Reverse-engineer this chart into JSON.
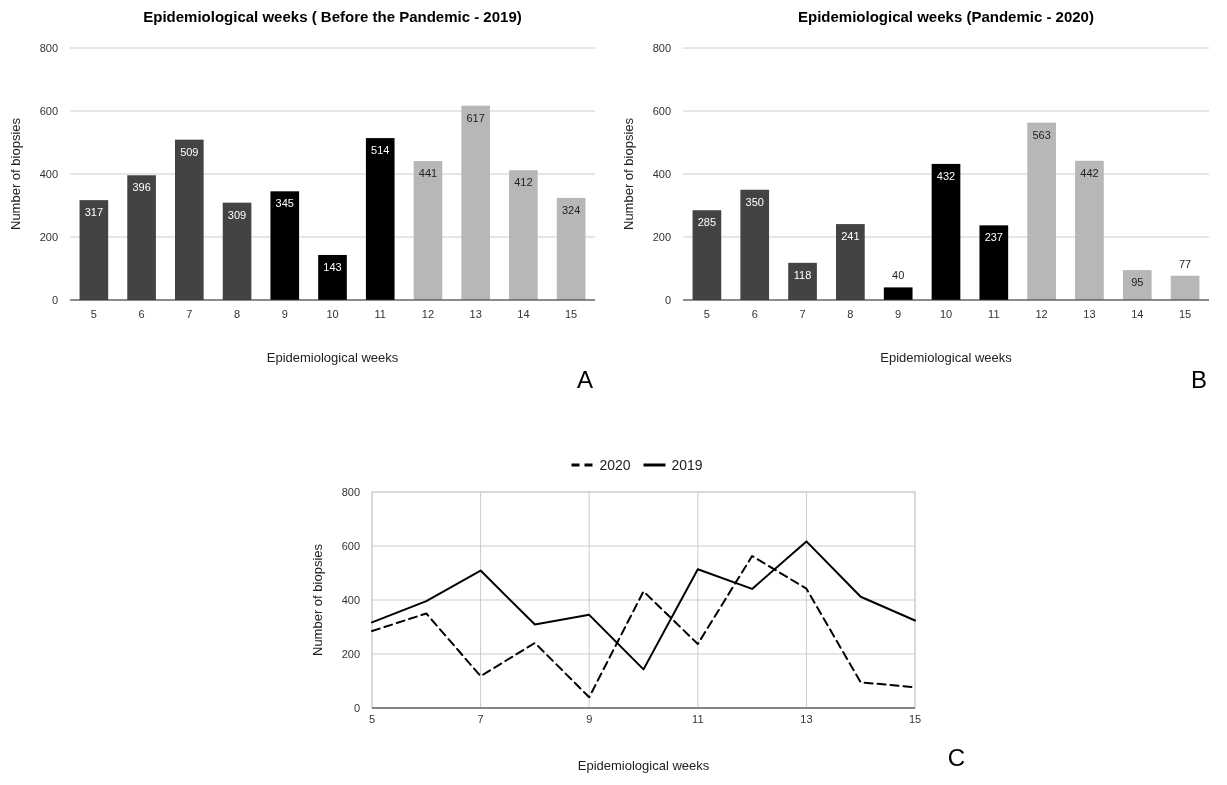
{
  "chart_data": [
    {
      "type": "bar",
      "title": "Epidemiological weeks ( Before the Pandemic - 2019)",
      "xlabel": "Epidemiological weeks",
      "ylabel": "Number of biopsies",
      "categories": [
        "5",
        "6",
        "7",
        "8",
        "9",
        "10",
        "11",
        "12",
        "13",
        "14",
        "15"
      ],
      "values": [
        317,
        396,
        509,
        309,
        345,
        143,
        514,
        441,
        617,
        412,
        324
      ],
      "colors": [
        "#434343",
        "#434343",
        "#434343",
        "#434343",
        "#000000",
        "#000000",
        "#000000",
        "#b7b7b7",
        "#b7b7b7",
        "#b7b7b7",
        "#b7b7b7"
      ],
      "ylim": [
        0,
        800
      ],
      "yticks": [
        0,
        200,
        400,
        600,
        800
      ],
      "grid": "y",
      "data_labels": true,
      "legend": false,
      "annotations": [
        "A"
      ]
    },
    {
      "type": "bar",
      "title": "Epidemiological weeks (Pandemic - 2020)",
      "xlabel": "Epidemiological weeks",
      "ylabel": "Number of biopsies",
      "categories": [
        "5",
        "6",
        "7",
        "8",
        "9",
        "10",
        "11",
        "12",
        "13",
        "14",
        "15"
      ],
      "values": [
        285,
        350,
        118,
        241,
        40,
        432,
        237,
        563,
        442,
        95,
        77
      ],
      "colors": [
        "#434343",
        "#434343",
        "#434343",
        "#434343",
        "#000000",
        "#000000",
        "#000000",
        "#b7b7b7",
        "#b7b7b7",
        "#b7b7b7",
        "#b7b7b7"
      ],
      "ylim": [
        0,
        800
      ],
      "yticks": [
        0,
        200,
        400,
        600,
        800
      ],
      "grid": "y",
      "data_labels": true,
      "legend": false,
      "annotations": [
        "B"
      ]
    },
    {
      "type": "line",
      "xlabel": "Epidemiological weeks",
      "ylabel": "Number of biopsies",
      "x": [
        5,
        6,
        7,
        8,
        9,
        10,
        11,
        12,
        13,
        14,
        15
      ],
      "series": [
        {
          "name": "2020",
          "color": "#000000",
          "line_style": "dashed",
          "values": [
            285,
            350,
            118,
            241,
            40,
            432,
            237,
            563,
            442,
            95,
            77
          ]
        },
        {
          "name": "2019",
          "color": "#000000",
          "line_style": "solid",
          "values": [
            317,
            396,
            509,
            309,
            345,
            143,
            514,
            441,
            617,
            412,
            324
          ]
        }
      ],
      "xlim": [
        5,
        15
      ],
      "xticks": [
        5,
        7,
        9,
        11,
        13,
        15
      ],
      "ylim": [
        0,
        800
      ],
      "yticks": [
        0,
        200,
        400,
        600,
        800
      ],
      "grid": true,
      "legend": "top",
      "annotations": [
        "C"
      ]
    }
  ]
}
